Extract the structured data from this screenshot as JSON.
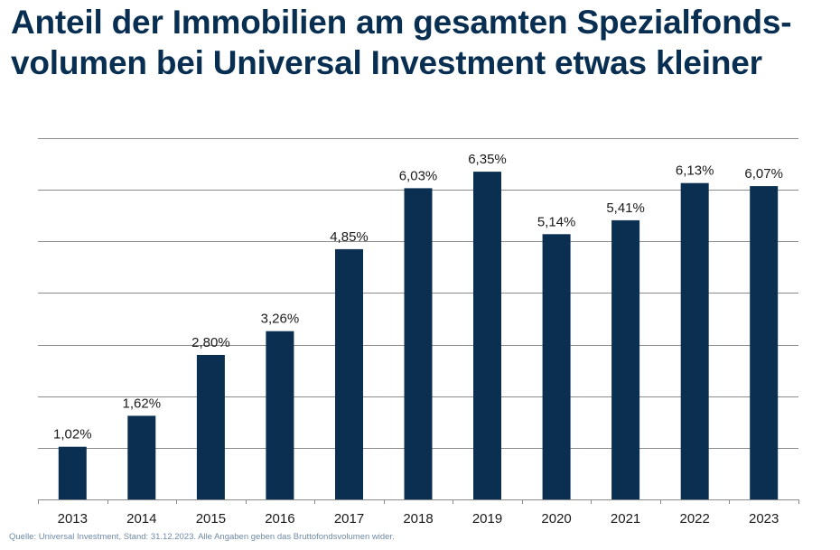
{
  "title_lines": [
    "Anteil der Immobilien am gesamten Spezialfonds-",
    "volumen bei Universal Investment etwas kleiner"
  ],
  "source": "Quelle: Universal Investment, Stand: 31.12.2023. Alle Angaben geben das Bruttofondsvolumen wider.",
  "colors": {
    "title": "#082f52",
    "bar": "#0b2f51",
    "grid": "#8c8c8c",
    "source": "#6e8aa6"
  },
  "chart_data": {
    "type": "bar",
    "categories": [
      "2013",
      "2014",
      "2015",
      "2016",
      "2017",
      "2018",
      "2019",
      "2020",
      "2021",
      "2022",
      "2023"
    ],
    "values": [
      1.02,
      1.62,
      2.8,
      3.26,
      4.85,
      6.03,
      6.35,
      5.14,
      5.41,
      6.13,
      6.07
    ],
    "data_labels": [
      "1,02%",
      "1,62%",
      "2,80%",
      "3,26%",
      "4,85%",
      "6,03%",
      "6,35%",
      "5,14%",
      "5,41%",
      "6,13%",
      "6,07%"
    ],
    "title": "",
    "xlabel": "",
    "ylabel": "",
    "ylim": [
      0,
      7
    ],
    "y_gridlines": [
      0,
      1,
      2,
      3,
      4,
      5,
      6,
      7
    ],
    "y_tick_labels_shown": false,
    "grid": true,
    "legend": "none"
  }
}
